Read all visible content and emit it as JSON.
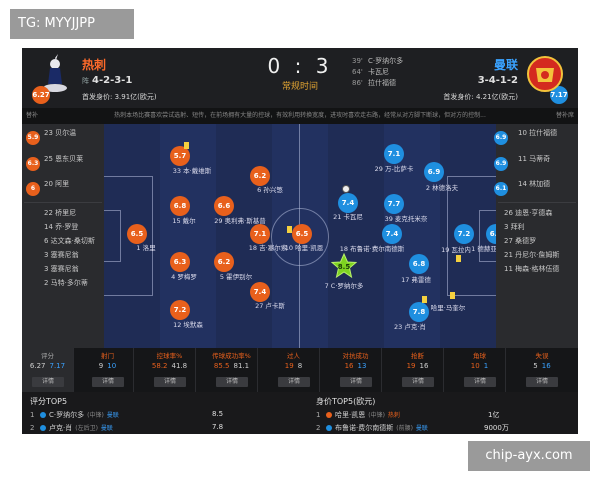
{
  "watermark_top": "TG: MYYJJPP",
  "watermark_bottom": "chip-ayx.com",
  "home": {
    "name": "热刺",
    "formation_label": "阵",
    "formation": "4-2-3-1",
    "worth": "首发身价: 3.91亿(欧元)",
    "rating": "6.27",
    "color": "#e8601c"
  },
  "away": {
    "name": "曼联",
    "formation_label": "阵",
    "formation": "3-4-1-2",
    "worth": "首发身价: 4.21亿(欧元)",
    "rating": "7.17",
    "color": "#1f8fe0"
  },
  "score": "0 : 3",
  "score_sub": "常规时间",
  "goals": [
    {
      "min": "39'",
      "text": "C·罗纳尔多"
    },
    {
      "min": "64'",
      "text": "卡瓦尼"
    },
    {
      "min": "86'",
      "text": "拉什福德"
    }
  ],
  "infobar": {
    "left": "替补",
    "right": "替补席",
    "text": "热刺本场比赛喜欢尝试选射、短传，在前场拥有大量的控球，有效利用转换宽度，进攻时喜欢走右路，经常从对方脚下断球，但对方的控制..."
  },
  "home_subs": [
    {
      "rating": "5.9",
      "name": "23 贝尔温"
    },
    {
      "rating": "6.3",
      "name": "25 恩东贝莱"
    },
    {
      "rating": "6",
      "name": "20 阿里"
    },
    {
      "name": "22 桥里尼"
    },
    {
      "name": "14 乔·罗登"
    },
    {
      "name": "6 达文森·桑切斯"
    },
    {
      "name": "3 塞赛尼翁"
    },
    {
      "name": "3 塞赛尼翁"
    },
    {
      "name": "2 马特·多尔蒂"
    }
  ],
  "away_subs": [
    {
      "rating": "6.9",
      "name": "10 拉什福德"
    },
    {
      "rating": "6.9",
      "name": "11 马蒂奇"
    },
    {
      "rating": "6.1",
      "name": "14 林加德"
    },
    {
      "name": "26 迪恩·亨德森"
    },
    {
      "name": "3 拜利"
    },
    {
      "name": "27 桑德罗"
    },
    {
      "name": "21 丹尼尔·詹姆斯"
    },
    {
      "name": "11 梅森·格林伍德"
    }
  ],
  "home_players": [
    {
      "rating": "6.5",
      "name": "1 洛里"
    },
    {
      "rating": "5.7",
      "name": "33 本·戴维斯"
    },
    {
      "rating": "6.8",
      "name": "15 戴尔"
    },
    {
      "rating": "6.3",
      "name": "4 罗梅罗"
    },
    {
      "rating": "7.2",
      "name": "12 埃默森"
    },
    {
      "rating": "6.2",
      "name": "6 孙兴慜"
    },
    {
      "rating": "6.6",
      "name": "29 奥利弗·斯基普"
    },
    {
      "rating": "6.2",
      "name": "5 霍伊别尔"
    },
    {
      "rating": "7.4",
      "name": "27 卢卡斯"
    },
    {
      "rating": "7.1",
      "name": "18 吉·塞尔索"
    },
    {
      "rating": "6.5",
      "name": "10 哈里·凯恩"
    }
  ],
  "away_players": [
    {
      "rating": "7.1",
      "name": "29 万-比萨卡"
    },
    {
      "rating": "7.7",
      "name": "19 瓦拉内"
    },
    {
      "rating": "7.4",
      "name": "21 卡瓦尼"
    },
    {
      "rating": "6.9",
      "name": "2 林德洛夫"
    },
    {
      "rating": "7.4",
      "name": "18 布鲁诺·费尔南德斯"
    },
    {
      "rating": "8.5",
      "name": "7 C·罗纳尔多"
    },
    {
      "rating": "6.8",
      "name": "17 弗雷德"
    },
    {
      "rating": "7.8",
      "name": "23 卢克·肖"
    },
    {
      "rating": "7.2",
      "name": "19 瓦拉内"
    },
    {
      "rating": "6.6",
      "name": "1 德赫亚"
    },
    {
      "name": "哈里·马奎尔"
    },
    {
      "name": "39 麦克托米奈"
    }
  ],
  "stats": [
    {
      "title": "评分",
      "home": "6.27",
      "away": "7.17",
      "btn": "详情"
    },
    {
      "title": "射门",
      "home": "9",
      "away": "10",
      "btn": "详情"
    },
    {
      "title": "控球率%",
      "home": "58.2",
      "away": "41.8",
      "btn": "详情"
    },
    {
      "title": "传球成功率%",
      "home": "85.5",
      "away": "81.1",
      "btn": "详情"
    },
    {
      "title": "过人",
      "home": "19",
      "away": "8",
      "btn": "详情"
    },
    {
      "title": "对抗成功",
      "home": "16",
      "away": "13",
      "btn": "详情"
    },
    {
      "title": "抢断",
      "home": "19",
      "away": "16",
      "btn": "详情"
    },
    {
      "title": "角球",
      "home": "10",
      "away": "1",
      "btn": "详情"
    },
    {
      "title": "失误",
      "home": "5",
      "away": "16",
      "btn": "详情"
    }
  ],
  "top5": {
    "rating_title": "评分TOP5",
    "worth_title": "身价TOP5(欧元)",
    "rating_rows": [
      {
        "rank": "1",
        "name": "C·罗纳尔多",
        "pos": "(中锋)",
        "team": "曼联",
        "value": "8.5"
      },
      {
        "rank": "2",
        "name": "卢克·肖",
        "pos": "(左后卫)",
        "team": "曼联",
        "value": "7.8"
      }
    ],
    "worth_rows": [
      {
        "rank": "1",
        "name": "哈里·凯恩",
        "pos": "(中锋)",
        "team": "热刺",
        "value": "1亿"
      },
      {
        "rank": "2",
        "name": "布鲁诺·费尔南德斯",
        "pos": "(前腰)",
        "team": "曼联",
        "value": "9000万"
      }
    ]
  }
}
